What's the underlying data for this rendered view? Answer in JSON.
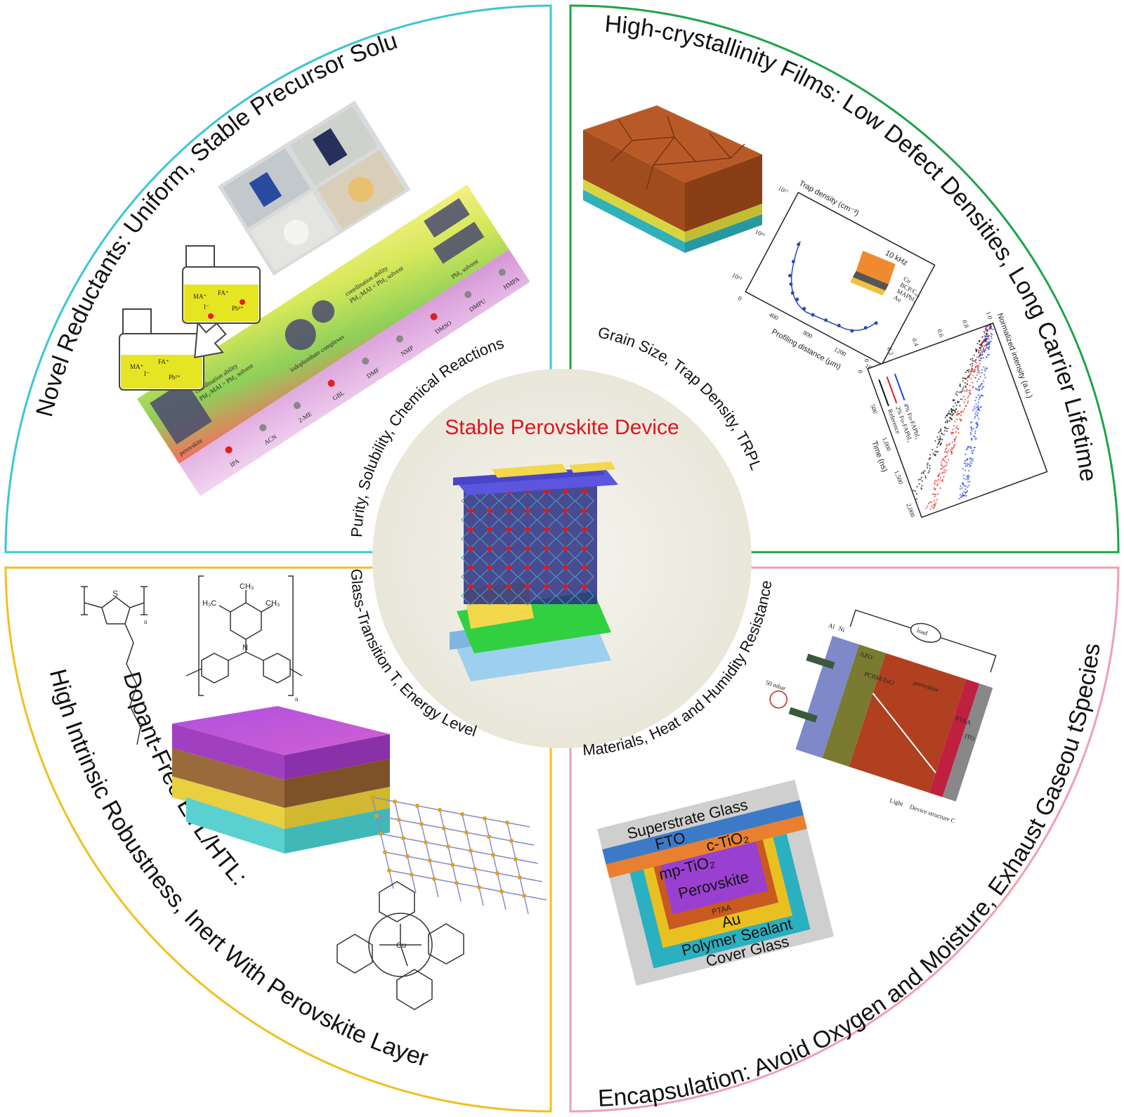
{
  "center": {
    "title": "Stable Perovskite Device"
  },
  "quadrants": {
    "top_left": {
      "heading": "Novel Reductants: Uniform, Stable Precursor Solution",
      "inner_label": "Purity, Solubility, Chemical Reactions",
      "border_color": "#3cc6d2",
      "panel": {
        "coordination_top": "coordination ability",
        "coordination_top_eq": "PbI₂:MAI < PbI₂ solvent",
        "coordination_bottom": "coordination ability",
        "coordination_bottom_eq": "PbI₂:MAI > PbI₂ solvent",
        "iodoplumbate": "iodoplumbate complexes",
        "pbi2_solvent": "PbI₂ solvent",
        "perovskite": "perovskite",
        "solvents": [
          "IPA",
          "ACN",
          "2-ME",
          "GBL",
          "DMF",
          "NMP",
          "DMSO",
          "DMPU",
          "HMPA"
        ],
        "vial_left_ions": [
          "MA⁺",
          "FA⁺",
          "I⁻",
          "Pb²⁺"
        ],
        "vial_right_ions": [
          "MA⁺",
          "FA⁺",
          "I⁻",
          "Pb²⁺"
        ]
      }
    },
    "top_right": {
      "heading": "High-crystallinity Films: Low Defect Densities, Long Carrier Lifetime",
      "inner_label": "Grain Size, Trap Density, TRPL",
      "border_color": "#1fa24a",
      "trap_plot": {
        "ylabel": "Trap density (cm⁻³)",
        "xlabel": "Profiling distance (μm)",
        "freq": "10 kHz",
        "x_ticks": [
          "0",
          "400",
          "800",
          "1200",
          "1600"
        ],
        "y_ticks": [
          "10¹⁵",
          "10¹⁶",
          "10¹⁷"
        ],
        "stack": [
          "Cu",
          "BCP/C₆₀",
          "MAPbI₃",
          "Au"
        ]
      },
      "trpl_plot": {
        "ylabel": "Normalized intensity (a.u.)",
        "xlabel": "Time (ns)",
        "x_ticks": [
          "0",
          "500",
          "1,000",
          "1,500",
          "2,000"
        ],
        "y_ticks": [
          "0",
          "0.2",
          "0.4",
          "0.6",
          "0.8",
          "1.0"
        ],
        "legend": [
          "Reference",
          "2% Fo-FAPbI₃",
          "4% Fo-FAPbI₃"
        ],
        "colors": [
          "#111111",
          "#e02020",
          "#2040e0"
        ]
      }
    },
    "bottom_left": {
      "heading_line1": "Dopant-Free ETL/HTL:",
      "heading_line2": "High Intrinsic Robustness, Inert With Perovskite Layer",
      "inner_label": "Glass-Transition T, Energy Level",
      "border_color": "#f0c020",
      "chem": {
        "p3ht_sub": "n",
        "ptaa_ch3": "CH₃",
        "ptaa_h3c": "H₃C",
        "ptaa_n": "N",
        "ptaa_sub": "n",
        "cupc_metal": "Cu"
      }
    },
    "bottom_right": {
      "heading": "Encapsulation: Avoid Oxygen and Moisture, Exhaust Gaseou tSpecies",
      "inner_label": "Materials, Heat and Humidity Resistance",
      "border_color": "#f0a0b0",
      "layers": [
        "Superstrate Glass",
        "FTO",
        "c-TiO₂",
        "mp-TiO₂",
        "Perovskite",
        "PTAA",
        "Au",
        "Polymer Sealant",
        "Cover Glass"
      ],
      "device": {
        "labels": [
          "Al",
          "Ni",
          "AZO",
          "PCBM/ZnO",
          "perovskite",
          "PTAA",
          "ITO",
          "load",
          "50 mbar",
          "Device structure C",
          "Light"
        ]
      }
    }
  }
}
